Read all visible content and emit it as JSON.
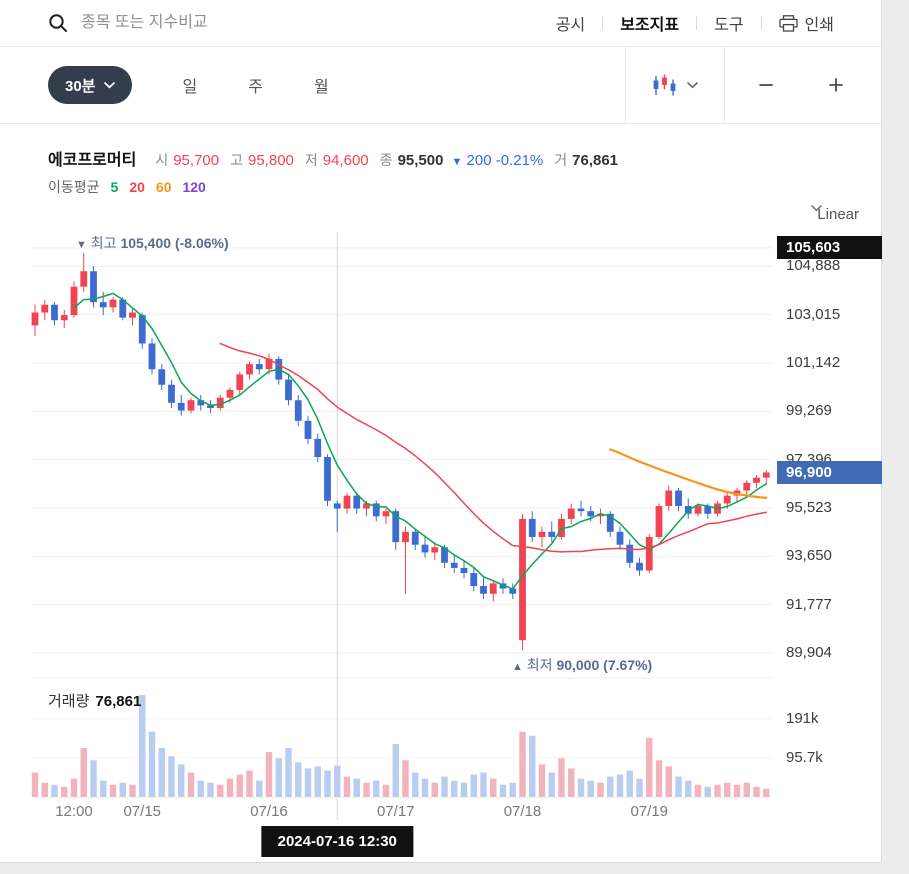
{
  "header": {
    "search_placeholder": "종목 또는 지수비교",
    "menu": [
      {
        "label": "공시",
        "active": false
      },
      {
        "label": "보조지표",
        "active": true
      },
      {
        "label": "도구",
        "active": false
      },
      {
        "label": "인쇄",
        "active": false
      }
    ]
  },
  "toolbar": {
    "interval_label": "30분",
    "periods": [
      "일",
      "주",
      "월"
    ],
    "zoom_out_label": "−",
    "zoom_in_label": "+"
  },
  "stock": {
    "name": "에코프로머티",
    "open_label": "시",
    "open": "95,700",
    "high_label": "고",
    "high": "95,800",
    "low_label": "저",
    "low": "94,600",
    "close_label": "종",
    "close": "95,500",
    "change_marker": "▼",
    "change": "200",
    "change_pct": "-0.21%",
    "turnover_label": "거",
    "volume": "76,861"
  },
  "ma_legend": {
    "label": "이동평균"
  },
  "scale_control": {
    "label": "Linear"
  },
  "annotations": {
    "high": {
      "marker": "▼",
      "label": "최고",
      "value": "105,400",
      "pct": "(-8.06%)"
    },
    "low": {
      "marker": "▲",
      "label": "최저",
      "value": "90,000",
      "pct": "(7.67%)"
    }
  },
  "badges": {
    "max": "105,603",
    "current": "96,900"
  },
  "volume_panel": {
    "label": "거래량",
    "value": "76,861"
  },
  "tooltip": {
    "text": "2024-07-16 12:30"
  },
  "chart_data": {
    "type": "candlestick",
    "interval": "30m",
    "grid": true,
    "price_axis": {
      "labels": [
        105603,
        104888,
        103015,
        101142,
        99269,
        97396,
        95523,
        93650,
        91777,
        89904
      ],
      "range": [
        89050,
        106220
      ]
    },
    "volume_axis": {
      "ticks": [
        {
          "label": "191k",
          "value": 191000
        },
        {
          "label": "95.7k",
          "value": 95700
        }
      ]
    },
    "x_labels": [
      {
        "label": "12:00",
        "index": 4
      },
      {
        "label": "07/15",
        "index": 11
      },
      {
        "label": "07/16",
        "index": 24
      },
      {
        "label": "07/17",
        "index": 37
      },
      {
        "label": "07/18",
        "index": 50
      },
      {
        "label": "07/19",
        "index": 63
      }
    ],
    "crosshair_index": 31,
    "crosshair_datetime": "2024-07-16 12:30",
    "current_price": 96900,
    "high_marker": {
      "index": 5,
      "price": 105400,
      "pct_from_current": -8.06
    },
    "low_marker": {
      "index": 50,
      "price": 90000,
      "pct_from_current": 7.67
    },
    "moving_averages": [
      {
        "period": 5,
        "color": "#0aa653",
        "width": 1.5
      },
      {
        "period": 20,
        "color": "#f04452",
        "width": 1.5
      },
      {
        "period": 60,
        "color": "#f7941d",
        "width": 2.2
      },
      {
        "period": 120,
        "color": "#8041d9",
        "width": 1.5
      }
    ],
    "colors": {
      "up": "#f04452",
      "down": "#3d6bd0",
      "volume_up": "#f3b3bc",
      "volume_down": "#b9cdf0",
      "max_badge": "#111111",
      "current_badge": "#3f6cb4",
      "crosshair": "#d8d8d8",
      "grid": "#f1f1f1"
    },
    "candles": [
      [
        102600,
        103400,
        102200,
        103100,
        60000
      ],
      [
        103100,
        103600,
        102800,
        103400,
        35000
      ],
      [
        103400,
        103500,
        102600,
        102800,
        30000
      ],
      [
        102800,
        103200,
        102500,
        103000,
        25000
      ],
      [
        103000,
        104300,
        102900,
        104100,
        45000
      ],
      [
        104100,
        105400,
        103900,
        104700,
        120000
      ],
      [
        104700,
        104900,
        103300,
        103500,
        90000
      ],
      [
        103500,
        103900,
        103000,
        103300,
        40000
      ],
      [
        103300,
        103700,
        103100,
        103600,
        30000
      ],
      [
        103600,
        103700,
        102800,
        102900,
        35000
      ],
      [
        102900,
        103300,
        102600,
        103100,
        30000
      ],
      [
        103000,
        103100,
        101700,
        101900,
        250000
      ],
      [
        101900,
        102100,
        100700,
        100900,
        160000
      ],
      [
        100900,
        101100,
        100100,
        100300,
        120000
      ],
      [
        100300,
        100500,
        99400,
        99600,
        100000
      ],
      [
        99600,
        99900,
        99100,
        99300,
        80000
      ],
      [
        99300,
        99800,
        99200,
        99700,
        60000
      ],
      [
        99700,
        99900,
        99300,
        99500,
        40000
      ],
      [
        99500,
        99700,
        99200,
        99400,
        35000
      ],
      [
        99400,
        99900,
        99300,
        99800,
        30000
      ],
      [
        99800,
        100200,
        99600,
        100100,
        45000
      ],
      [
        100100,
        100800,
        99900,
        100700,
        55000
      ],
      [
        100700,
        101200,
        100500,
        101100,
        65000
      ],
      [
        101100,
        101300,
        100700,
        100900,
        40000
      ],
      [
        100900,
        101500,
        100700,
        101300,
        110000
      ],
      [
        101300,
        101400,
        100300,
        100500,
        95000
      ],
      [
        100500,
        100700,
        99500,
        99700,
        120000
      ],
      [
        99700,
        99900,
        98700,
        98900,
        85000
      ],
      [
        98900,
        99100,
        98000,
        98200,
        70000
      ],
      [
        98200,
        98400,
        97300,
        97500,
        75000
      ],
      [
        97500,
        97600,
        95600,
        95800,
        65000
      ],
      [
        95700,
        95800,
        94600,
        95500,
        76861
      ],
      [
        95500,
        96100,
        95300,
        96000,
        50000
      ],
      [
        96000,
        96100,
        95300,
        95500,
        45000
      ],
      [
        95500,
        95800,
        95200,
        95700,
        35000
      ],
      [
        95700,
        95800,
        95000,
        95200,
        40000
      ],
      [
        95200,
        95500,
        94900,
        95400,
        30000
      ],
      [
        95400,
        95500,
        93900,
        94200,
        130000
      ],
      [
        94200,
        94800,
        92200,
        94600,
        90000
      ],
      [
        94600,
        94700,
        93900,
        94100,
        60000
      ],
      [
        94100,
        94400,
        93600,
        93800,
        45000
      ],
      [
        93800,
        94200,
        93500,
        94000,
        35000
      ],
      [
        94000,
        94100,
        93200,
        93400,
        50000
      ],
      [
        93400,
        93700,
        93000,
        93200,
        40000
      ],
      [
        93200,
        93500,
        92800,
        93000,
        35000
      ],
      [
        93000,
        93200,
        92300,
        92500,
        55000
      ],
      [
        92500,
        92900,
        92000,
        92200,
        60000
      ],
      [
        92200,
        92700,
        91900,
        92600,
        45000
      ],
      [
        92600,
        92800,
        92200,
        92400,
        30000
      ],
      [
        92400,
        92600,
        92000,
        92200,
        35000
      ],
      [
        90400,
        95300,
        90000,
        95100,
        160000
      ],
      [
        95100,
        95400,
        94200,
        94400,
        150000
      ],
      [
        94400,
        94800,
        94000,
        94600,
        80000
      ],
      [
        94600,
        95000,
        94200,
        94400,
        60000
      ],
      [
        94400,
        95300,
        94300,
        95100,
        95000
      ],
      [
        95100,
        95700,
        94900,
        95500,
        70000
      ],
      [
        95500,
        95800,
        95200,
        95400,
        45000
      ],
      [
        95400,
        95600,
        95000,
        95200,
        40000
      ],
      [
        95200,
        95500,
        94900,
        95300,
        35000
      ],
      [
        95300,
        95400,
        94400,
        94600,
        50000
      ],
      [
        94600,
        94800,
        93900,
        94100,
        55000
      ],
      [
        94100,
        94300,
        93200,
        93400,
        65000
      ],
      [
        93400,
        93600,
        92900,
        93100,
        45000
      ],
      [
        93100,
        94500,
        93000,
        94400,
        145000
      ],
      [
        94400,
        95700,
        94300,
        95600,
        90000
      ],
      [
        95600,
        96400,
        95400,
        96200,
        75000
      ],
      [
        96200,
        96300,
        95400,
        95600,
        50000
      ],
      [
        95600,
        95900,
        95100,
        95300,
        40000
      ],
      [
        95300,
        95700,
        95200,
        95600,
        30000
      ],
      [
        95600,
        95700,
        95100,
        95300,
        25000
      ],
      [
        95300,
        95800,
        95200,
        95700,
        30000
      ],
      [
        95700,
        96100,
        95500,
        96000,
        35000
      ],
      [
        96000,
        96300,
        95800,
        96200,
        30000
      ],
      [
        96200,
        96600,
        96000,
        96500,
        35000
      ],
      [
        96500,
        96800,
        96300,
        96700,
        25000
      ],
      [
        96700,
        97000,
        96400,
        96900,
        20000
      ]
    ]
  }
}
